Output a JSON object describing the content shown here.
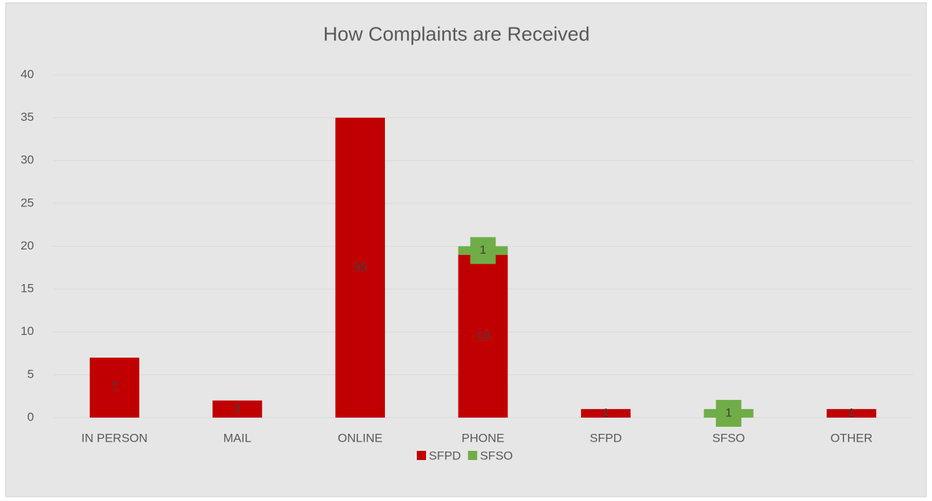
{
  "chart_data": {
    "type": "stacked_bar",
    "title": "How Complaints are Received",
    "categories": [
      "IN PERSON",
      "MAIL",
      "ONLINE",
      "PHONE",
      "SFPD",
      "SFSO",
      "OTHER"
    ],
    "series": [
      {
        "name": "SFPD",
        "color": "#c00000",
        "values": [
          7,
          2,
          35,
          19,
          1,
          null,
          1
        ]
      },
      {
        "name": "SFSO",
        "color": "#70ad47",
        "values": [
          null,
          null,
          null,
          1,
          null,
          1,
          null
        ]
      }
    ],
    "ylim": [
      0,
      40
    ],
    "yticks": [
      0,
      5,
      10,
      15,
      20,
      25,
      30,
      35,
      40
    ],
    "grid": true,
    "legend": "bottom"
  }
}
